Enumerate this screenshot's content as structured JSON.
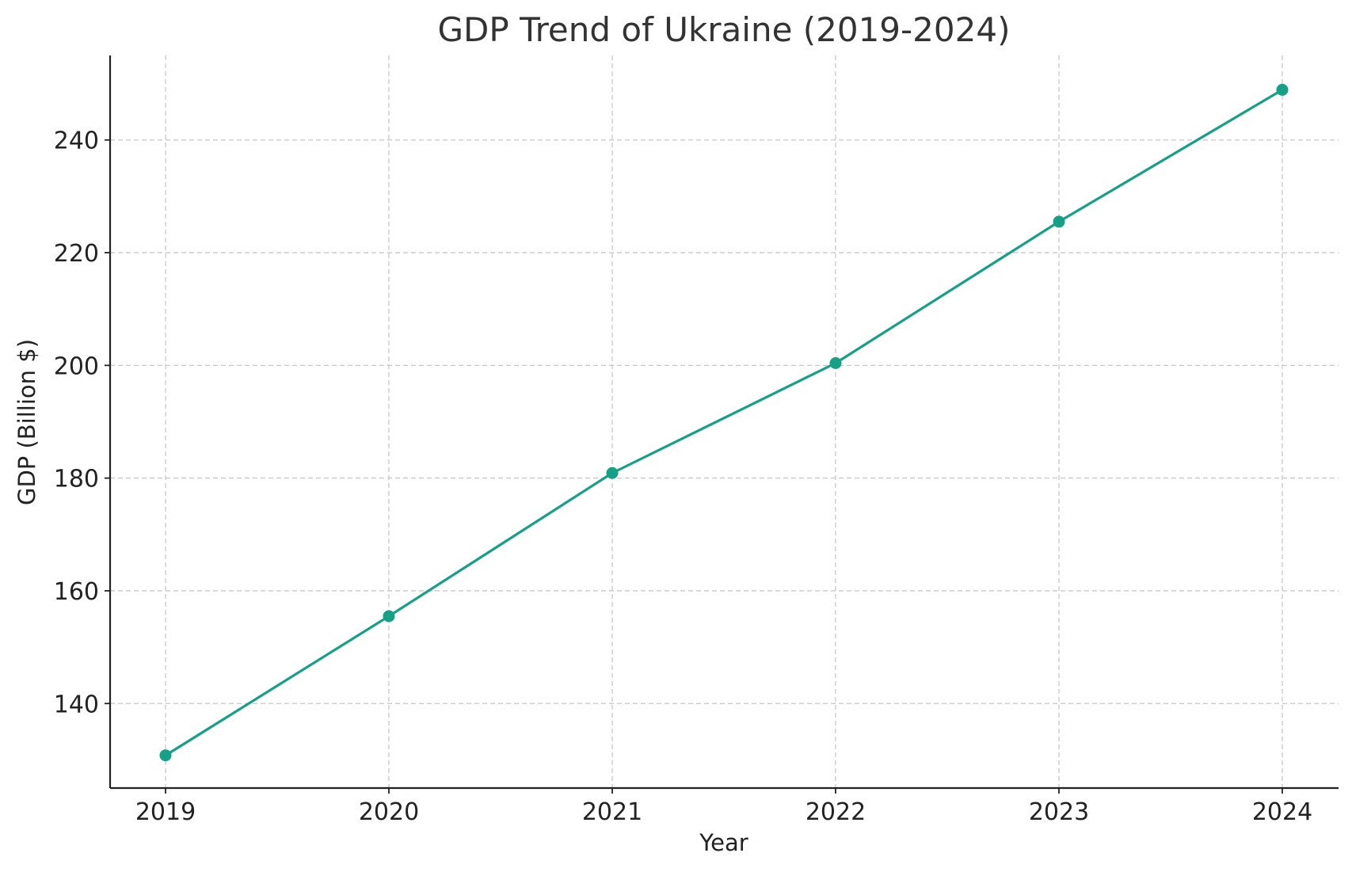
{
  "chart_data": {
    "type": "line",
    "title": "GDP Trend of Ukraine (2019-2024)",
    "xlabel": "Year",
    "ylabel": "GDP (Billion $)",
    "categories": [
      "2019",
      "2020",
      "2021",
      "2022",
      "2023",
      "2024"
    ],
    "series": [
      {
        "values": [
          130.8,
          155.5,
          180.9,
          200.4,
          225.5,
          248.9
        ],
        "color": "#16a085",
        "marker": "circle"
      }
    ],
    "ylim": [
      125,
      255
    ],
    "yticks": [
      140,
      160,
      180,
      200,
      220,
      240
    ],
    "grid": true,
    "grid_style": "dashed",
    "legend": "none"
  }
}
